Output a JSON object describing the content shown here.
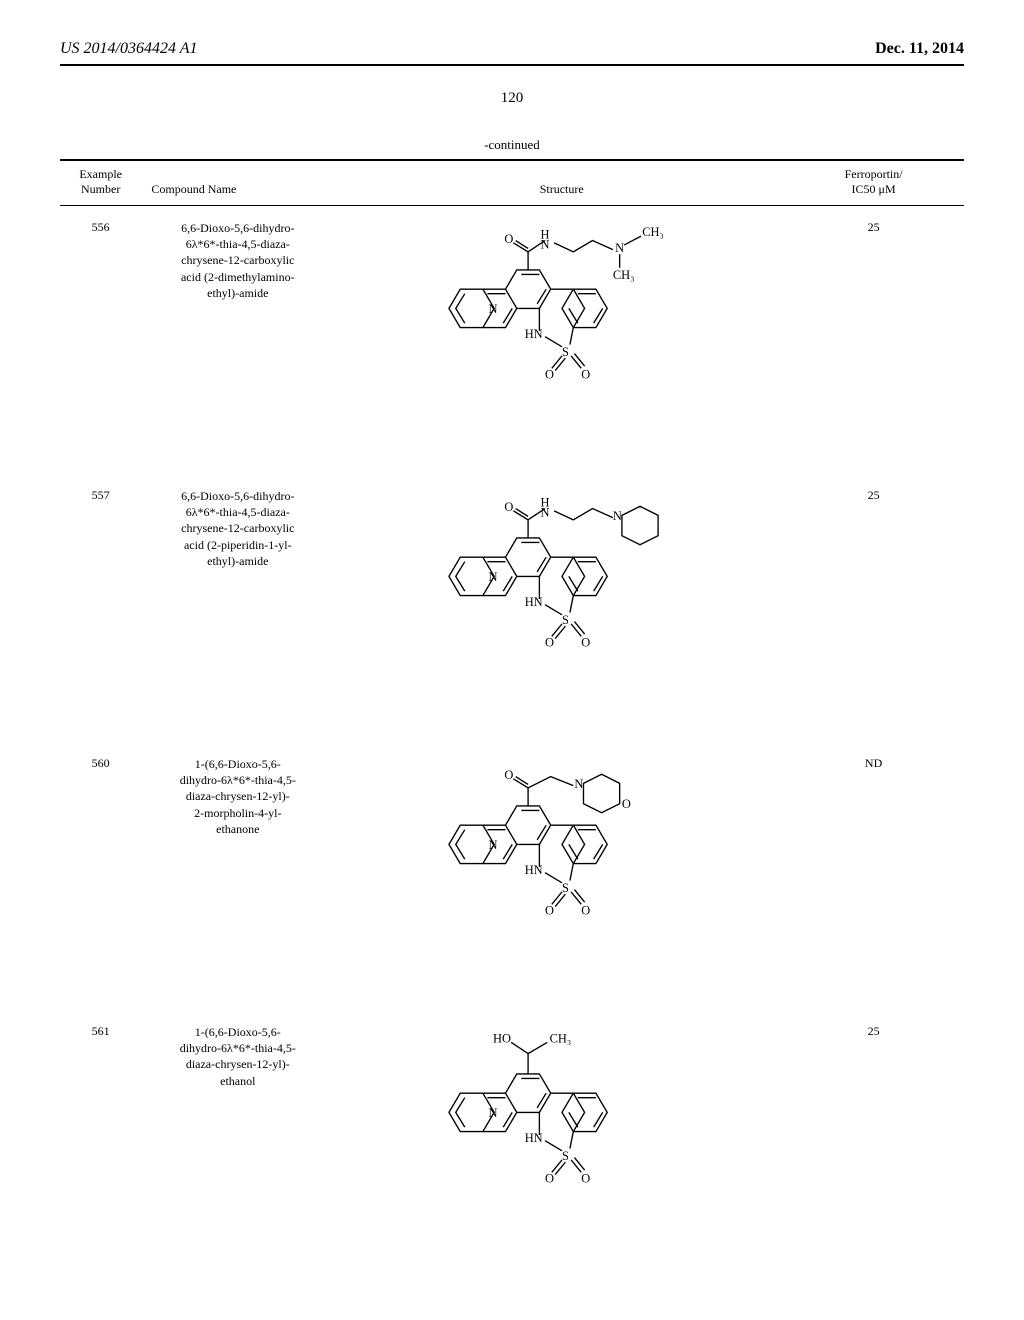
{
  "header": {
    "left": "US 2014/0364424 A1",
    "right": "Dec. 11, 2014"
  },
  "page_number": "120",
  "continued_label": "-continued",
  "columns": {
    "example_number": "Example\nNumber",
    "compound_name": "Compound Name",
    "structure": "Structure",
    "ic50": "Ferroportin/\nIC50 μM"
  },
  "rows": [
    {
      "number": "556",
      "name": "6,6-Dioxo-5,6-dihydro-\n6λ*6*-thia-4,5-diaza-\nchrysene-12-carboxylic\nacid (2-dimethylamino-\nethyl)-amide",
      "ic50": "25",
      "structure_type": "dimethylamino"
    },
    {
      "number": "557",
      "name": "6,6-Dioxo-5,6-dihydro-\n6λ*6*-thia-4,5-diaza-\nchrysene-12-carboxylic\nacid (2-piperidin-1-yl-\nethyl)-amide",
      "ic50": "25",
      "structure_type": "piperidine"
    },
    {
      "number": "560",
      "name": "1-(6,6-Dioxo-5,6-\ndihydro-6λ*6*-thia-4,5-\ndiaza-chrysen-12-yl)-\n2-morpholin-4-yl-\nethanone",
      "ic50": "ND",
      "structure_type": "morpholine"
    },
    {
      "number": "561",
      "name": "1-(6,6-Dioxo-5,6-\ndihydro-6λ*6*-thia-4,5-\ndiaza-chrysen-12-yl)-\nethanol",
      "ic50": "25",
      "structure_type": "ethanol"
    }
  ],
  "style": {
    "background_color": "#ffffff",
    "text_color": "#000000",
    "header_fontsize": 16,
    "body_fontsize": 12,
    "line_color": "#000000"
  }
}
